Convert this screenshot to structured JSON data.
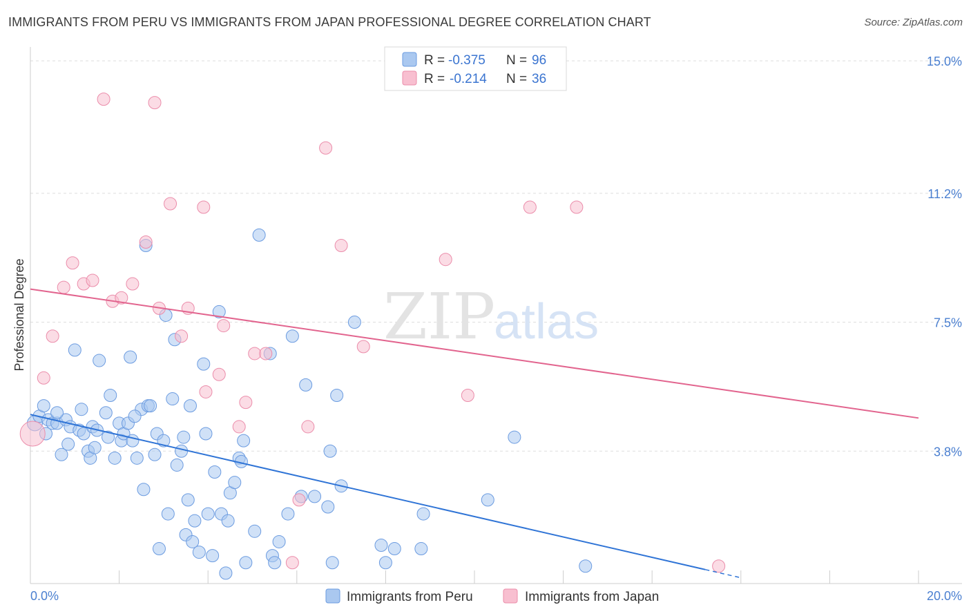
{
  "title": "IMMIGRANTS FROM PERU VS IMMIGRANTS FROM JAPAN PROFESSIONAL DEGREE CORRELATION CHART",
  "source": "Source: ZipAtlas.com",
  "watermark": {
    "zip": "ZIP",
    "atlas": "atlas"
  },
  "legend_top": {
    "r_label": "R =",
    "n_label": "N =",
    "items": [
      {
        "r": "-0.375",
        "n": "96"
      },
      {
        "r": "-0.214",
        "n": "36"
      }
    ]
  },
  "colors": {
    "peru_fill": "#aac8f0",
    "peru_stroke": "#6b9be0",
    "peru_line": "#2f74d6",
    "japan_fill": "#f8bfd0",
    "japan_stroke": "#eb8caa",
    "japan_line": "#e2648e",
    "tick": "#4a7fd0",
    "grid": "#dddddd"
  },
  "chart_data": {
    "type": "scatter",
    "title": "IMMIGRANTS FROM PERU VS IMMIGRANTS FROM JAPAN PROFESSIONAL DEGREE CORRELATION CHART",
    "xlabel": "",
    "ylabel": "Professional Degree",
    "xlim": [
      0,
      20
    ],
    "ylim": [
      0,
      15.2
    ],
    "x_tick_labels": [
      "0.0%",
      "20.0%"
    ],
    "y_ticks": [
      3.8,
      7.5,
      11.2,
      15.0
    ],
    "y_tick_labels": [
      "3.8%",
      "7.5%",
      "11.2%",
      "15.0%"
    ],
    "grid": true,
    "legend_position": "bottom",
    "series": [
      {
        "name": "Immigrants from Peru",
        "r": -0.375,
        "n": 96,
        "trend": {
          "x0": 0,
          "y0": 4.85,
          "x1": 15.2,
          "y1": 0.4,
          "dash_to_x": 16.0
        },
        "points": [
          [
            0.1,
            4.6
          ],
          [
            0.2,
            4.8
          ],
          [
            0.3,
            5.1
          ],
          [
            0.35,
            4.3
          ],
          [
            0.4,
            4.7
          ],
          [
            0.5,
            4.6
          ],
          [
            0.6,
            4.6
          ],
          [
            0.7,
            3.7
          ],
          [
            0.8,
            4.7
          ],
          [
            0.85,
            4.0
          ],
          [
            0.9,
            4.5
          ],
          [
            1.0,
            6.7
          ],
          [
            1.1,
            4.4
          ],
          [
            1.15,
            5.0
          ],
          [
            1.2,
            4.3
          ],
          [
            1.3,
            3.8
          ],
          [
            1.35,
            3.6
          ],
          [
            1.4,
            4.5
          ],
          [
            1.5,
            4.4
          ],
          [
            1.55,
            6.4
          ],
          [
            1.7,
            4.9
          ],
          [
            1.75,
            4.2
          ],
          [
            1.8,
            5.4
          ],
          [
            1.9,
            3.6
          ],
          [
            2.0,
            4.6
          ],
          [
            2.05,
            4.1
          ],
          [
            2.1,
            4.3
          ],
          [
            2.2,
            4.6
          ],
          [
            2.25,
            6.5
          ],
          [
            2.3,
            4.1
          ],
          [
            2.4,
            3.6
          ],
          [
            2.5,
            5.0
          ],
          [
            2.55,
            2.7
          ],
          [
            2.6,
            9.7
          ],
          [
            2.65,
            5.1
          ],
          [
            2.7,
            5.1
          ],
          [
            2.8,
            3.7
          ],
          [
            2.85,
            4.3
          ],
          [
            2.9,
            1.0
          ],
          [
            3.0,
            4.1
          ],
          [
            3.05,
            7.7
          ],
          [
            3.1,
            2.0
          ],
          [
            3.2,
            5.3
          ],
          [
            3.25,
            7.0
          ],
          [
            3.3,
            3.4
          ],
          [
            3.4,
            3.8
          ],
          [
            3.45,
            4.2
          ],
          [
            3.5,
            1.4
          ],
          [
            3.55,
            2.4
          ],
          [
            3.6,
            5.1
          ],
          [
            3.65,
            1.2
          ],
          [
            3.7,
            1.8
          ],
          [
            3.8,
            0.9
          ],
          [
            3.9,
            6.3
          ],
          [
            3.95,
            4.3
          ],
          [
            4.0,
            2.0
          ],
          [
            4.1,
            0.8
          ],
          [
            4.15,
            3.2
          ],
          [
            4.25,
            7.8
          ],
          [
            4.3,
            2.0
          ],
          [
            4.4,
            0.3
          ],
          [
            4.45,
            1.8
          ],
          [
            4.5,
            2.6
          ],
          [
            4.6,
            2.9
          ],
          [
            4.7,
            3.6
          ],
          [
            4.75,
            3.5
          ],
          [
            4.8,
            4.1
          ],
          [
            4.85,
            0.6
          ],
          [
            5.05,
            1.5
          ],
          [
            5.4,
            6.6
          ],
          [
            5.45,
            0.8
          ],
          [
            5.5,
            0.6
          ],
          [
            5.6,
            1.2
          ],
          [
            5.8,
            2.0
          ],
          [
            5.9,
            7.1
          ],
          [
            6.1,
            2.5
          ],
          [
            6.2,
            5.7
          ],
          [
            6.4,
            2.5
          ],
          [
            6.7,
            2.2
          ],
          [
            6.75,
            3.8
          ],
          [
            6.8,
            0.6
          ],
          [
            6.9,
            5.4
          ],
          [
            7.0,
            2.8
          ],
          [
            7.3,
            7.5
          ],
          [
            7.9,
            1.1
          ],
          [
            8.0,
            0.6
          ],
          [
            8.2,
            1.0
          ],
          [
            8.8,
            1.0
          ],
          [
            8.85,
            2.0
          ],
          [
            10.3,
            2.4
          ],
          [
            10.9,
            4.2
          ],
          [
            12.5,
            0.5
          ],
          [
            2.35,
            4.8
          ],
          [
            1.45,
            3.9
          ],
          [
            0.6,
            4.9
          ],
          [
            5.15,
            10.0
          ]
        ],
        "point_sizes": {
          "0": 11
        }
      },
      {
        "name": "Immigrants from Japan",
        "r": -0.214,
        "n": 36,
        "trend": {
          "x0": 0,
          "y0": 8.45,
          "x1": 20,
          "y1": 4.75
        },
        "points": [
          [
            0.05,
            4.3
          ],
          [
            0.3,
            5.9
          ],
          [
            0.5,
            7.1
          ],
          [
            0.75,
            8.5
          ],
          [
            0.95,
            9.2
          ],
          [
            1.2,
            8.6
          ],
          [
            1.4,
            8.7
          ],
          [
            1.65,
            13.9
          ],
          [
            1.85,
            8.1
          ],
          [
            2.05,
            8.2
          ],
          [
            2.3,
            8.6
          ],
          [
            2.6,
            9.8
          ],
          [
            2.8,
            13.8
          ],
          [
            2.9,
            7.9
          ],
          [
            3.15,
            10.9
          ],
          [
            3.4,
            7.1
          ],
          [
            3.55,
            7.9
          ],
          [
            3.9,
            10.8
          ],
          [
            3.95,
            5.5
          ],
          [
            4.25,
            6.0
          ],
          [
            4.35,
            7.4
          ],
          [
            4.7,
            4.5
          ],
          [
            4.85,
            5.2
          ],
          [
            5.05,
            6.6
          ],
          [
            5.3,
            6.6
          ],
          [
            5.9,
            0.6
          ],
          [
            6.05,
            2.4
          ],
          [
            6.25,
            4.5
          ],
          [
            6.65,
            12.5
          ],
          [
            7.0,
            9.7
          ],
          [
            7.5,
            6.8
          ],
          [
            9.35,
            9.3
          ],
          [
            9.85,
            5.4
          ],
          [
            11.25,
            10.8
          ],
          [
            12.3,
            10.8
          ],
          [
            15.5,
            0.5
          ]
        ],
        "point_sizes": {
          "0": 18
        }
      }
    ]
  },
  "bottom_legend": [
    "Immigrants from Peru",
    "Immigrants from Japan"
  ]
}
